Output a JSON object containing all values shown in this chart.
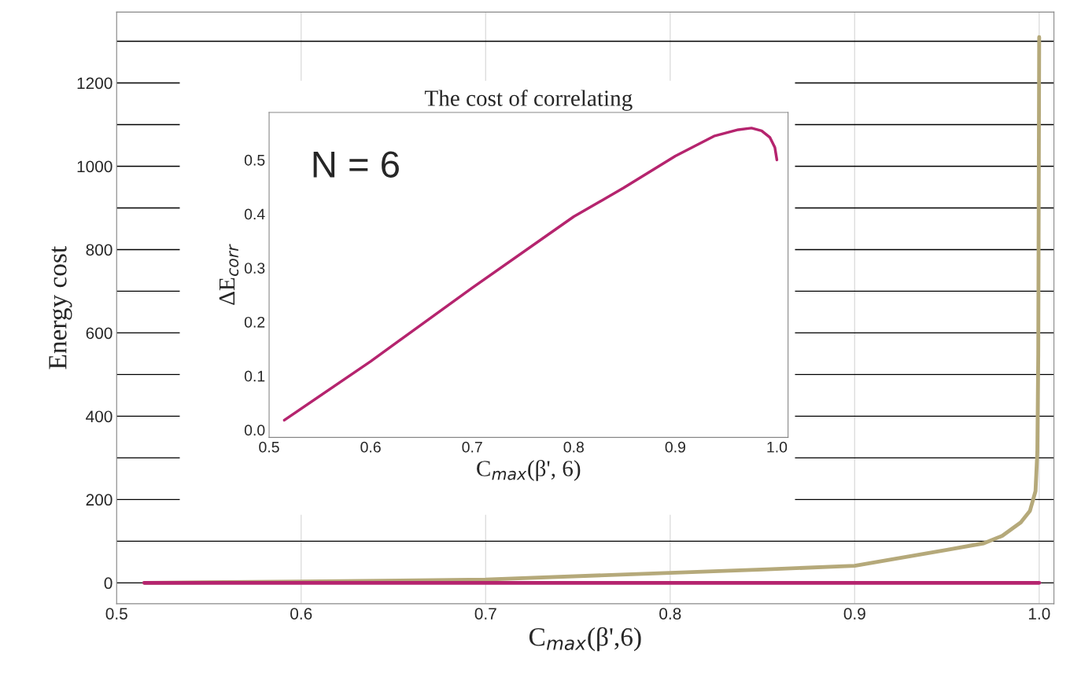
{
  "chart_data": [
    {
      "type": "line",
      "xlabel": "C$_{max}$(β',6)",
      "ylabel": "Energy cost",
      "grid": true,
      "xlim": [
        0.5,
        1.008
      ],
      "ylim": [
        -50,
        1370
      ],
      "xticks": [
        {
          "value": 0.5,
          "label": "0.5"
        },
        {
          "value": 0.6,
          "label": "0.6"
        },
        {
          "value": 0.7,
          "label": "0.7"
        },
        {
          "value": 0.8,
          "label": "0.8"
        },
        {
          "value": 0.9,
          "label": "0.9"
        },
        {
          "value": 1.0,
          "label": "1.0"
        }
      ],
      "yticks": [
        0,
        {
          "value": 100,
          "label": null
        },
        200,
        {
          "value": 300,
          "label": null
        },
        400,
        {
          "value": 500,
          "label": null
        },
        600,
        {
          "value": 700,
          "label": null
        },
        800,
        {
          "value": 900,
          "label": null
        },
        1000,
        {
          "value": 1100,
          "label": null
        },
        1200,
        {
          "value": 1300,
          "label": null
        }
      ],
      "series": [
        {
          "color": "#b5a97a",
          "x": [
            0.515,
            0.6,
            0.7,
            0.8,
            0.85,
            0.9,
            0.95,
            0.97,
            0.98,
            0.99,
            0.995,
            0.998,
            0.999,
            0.9995,
            1.0
          ],
          "values": [
            0,
            3,
            8,
            24,
            32,
            41,
            79,
            95,
            113,
            145,
            173,
            220,
            314,
            550,
            1310
          ]
        },
        {
          "color": "#b5246e",
          "x": [
            0.515,
            1.0
          ],
          "values": [
            0,
            0
          ]
        }
      ]
    },
    {
      "type": "line",
      "title": "The cost of correlating",
      "xlabel": "C$_{max}$(β', 6)",
      "ylabel": "ΔE$_{corr}$",
      "xlim": [
        0.5,
        1.011
      ],
      "ylim": [
        -0.014,
        0.588
      ],
      "xticks": [
        {
          "value": 0.5,
          "label": "0.5"
        },
        {
          "value": 0.6,
          "label": "0.6"
        },
        {
          "value": 0.7,
          "label": "0.7"
        },
        {
          "value": 0.8,
          "label": "0.8"
        },
        {
          "value": 0.9,
          "label": "0.9"
        },
        {
          "value": 1.0,
          "label": "1.0"
        }
      ],
      "yticks": [
        {
          "value": 0.0,
          "label": "0.0"
        },
        0.1,
        0.2,
        0.3,
        0.4,
        0.5
      ],
      "annotations": [
        "N = 6"
      ],
      "series": [
        {
          "color": "#b5246e",
          "x": [
            0.515,
            0.6,
            0.7,
            0.8,
            0.849,
            0.9,
            0.938,
            0.962,
            0.975,
            0.985,
            0.993,
            0.998,
            1.0
          ],
          "values": [
            0.018,
            0.127,
            0.263,
            0.395,
            0.448,
            0.507,
            0.544,
            0.556,
            0.559,
            0.554,
            0.542,
            0.523,
            0.5
          ]
        }
      ]
    }
  ]
}
